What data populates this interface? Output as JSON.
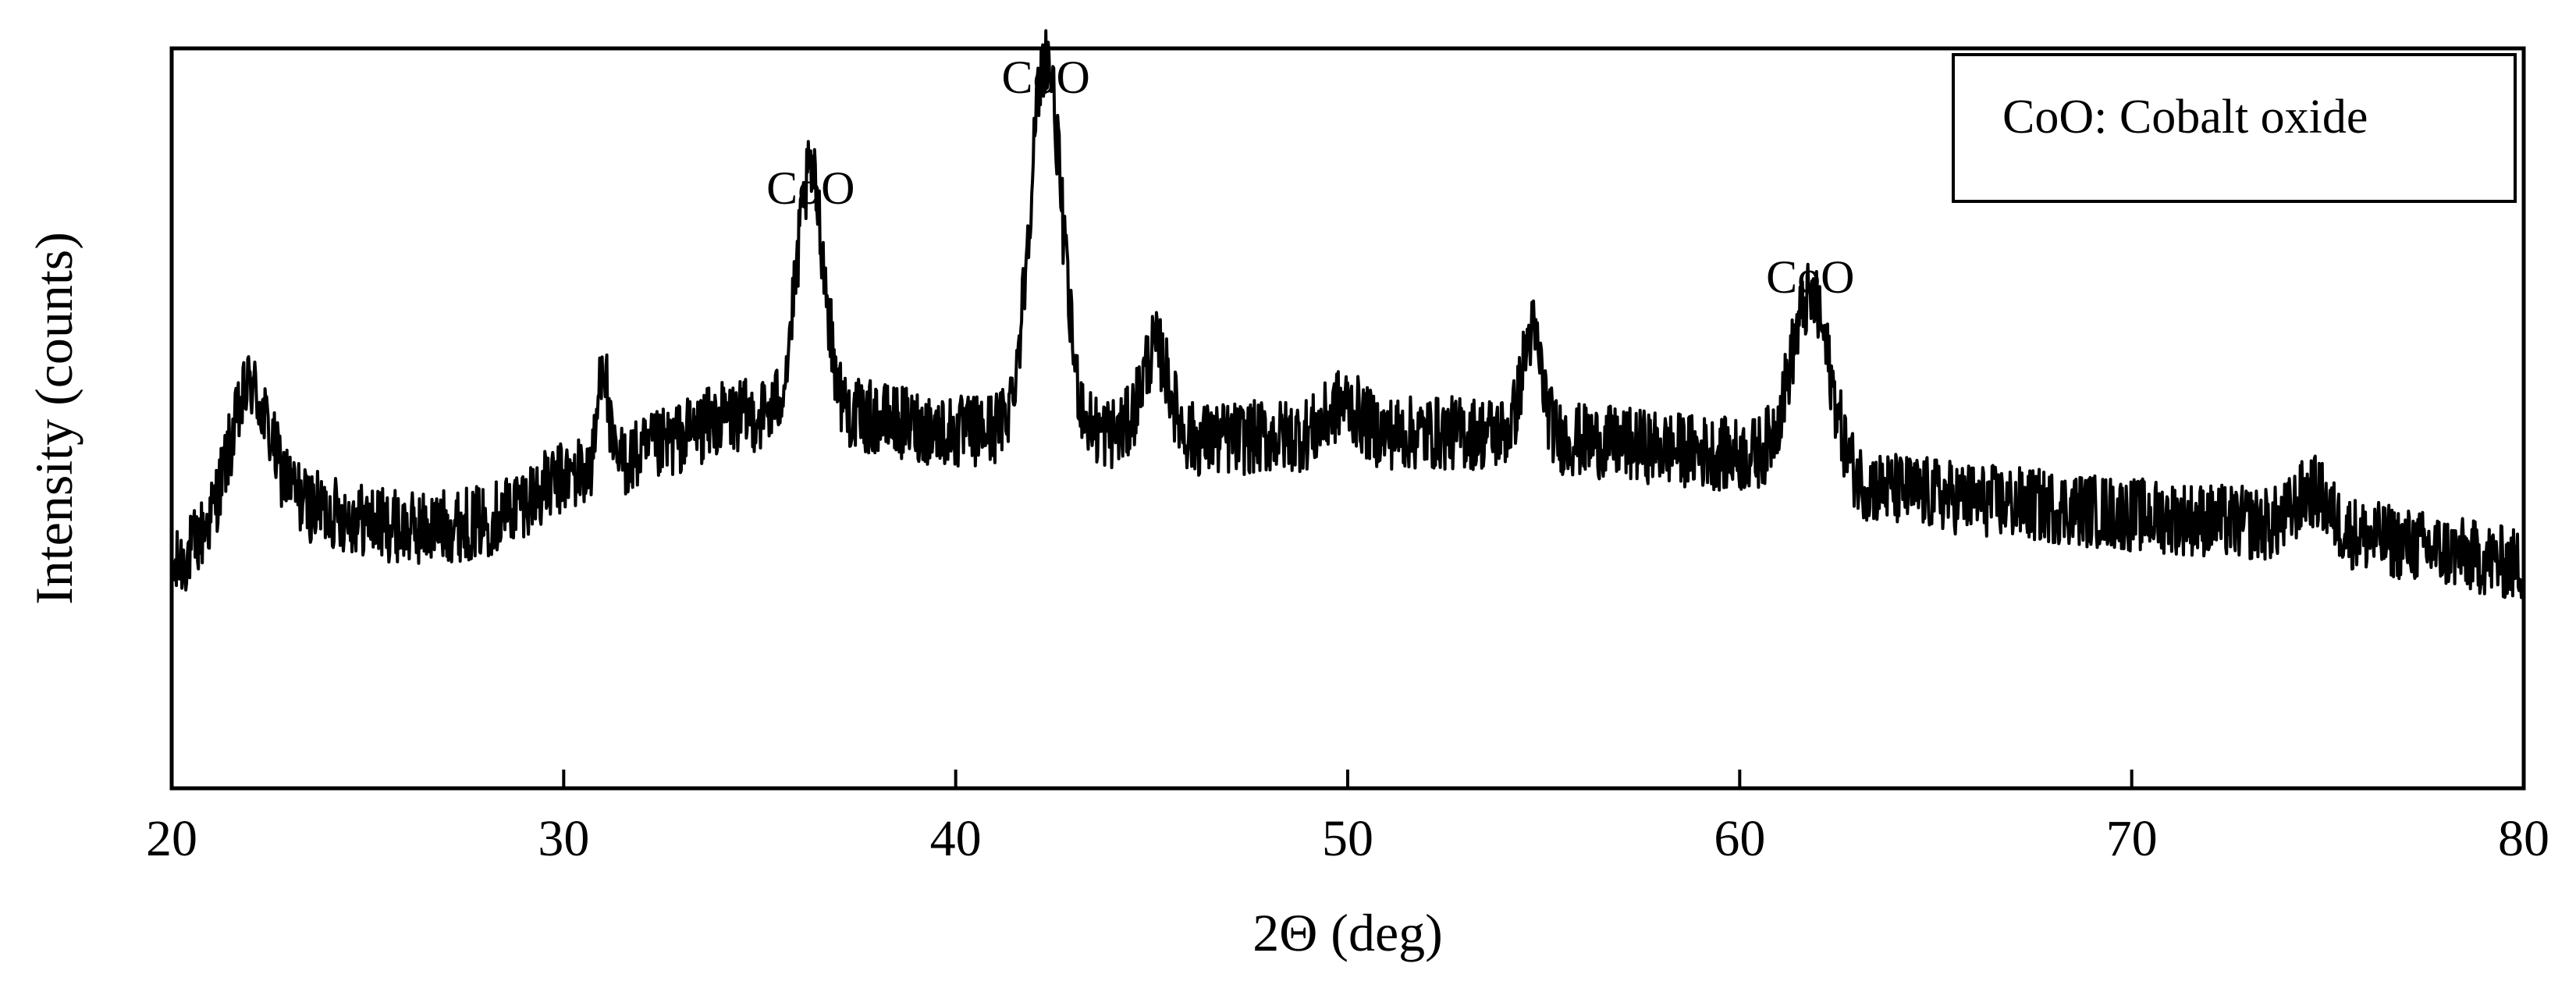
{
  "chart_data": {
    "type": "line",
    "title": "",
    "xlabel": "2Θ (deg)",
    "ylabel": "Intensity (counts)",
    "xlim": [
      20,
      80
    ],
    "xticks": [
      20,
      30,
      40,
      50,
      60,
      70,
      80
    ],
    "y_tick_labels_shown": false,
    "ylim": [
      0,
      100
    ],
    "grid": false,
    "legend": {
      "placement": "top-right",
      "text": "CoO: Cobalt oxide"
    },
    "series": [
      {
        "color": "#000000",
        "background": 30,
        "noise_amplitude": 5,
        "baseline": [
          [
            20,
            29
          ],
          [
            21,
            35
          ],
          [
            22,
            48
          ],
          [
            22.8,
            40
          ],
          [
            23.5,
            38
          ],
          [
            26,
            35
          ],
          [
            28,
            36
          ],
          [
            30,
            42
          ],
          [
            32,
            45
          ],
          [
            34,
            50
          ],
          [
            36,
            51
          ],
          [
            38,
            50
          ],
          [
            40,
            48
          ],
          [
            42,
            49
          ],
          [
            44,
            48
          ],
          [
            46,
            47
          ],
          [
            50,
            48
          ],
          [
            54,
            48
          ],
          [
            58,
            46
          ],
          [
            60,
            45
          ],
          [
            62,
            44
          ],
          [
            63,
            41
          ],
          [
            66,
            39
          ],
          [
            70,
            37
          ],
          [
            75,
            35
          ],
          [
            78,
            32
          ],
          [
            80,
            30
          ]
        ],
        "peaks": [
          {
            "x": 22.0,
            "height": 7,
            "width": 0.6
          },
          {
            "x": 31.0,
            "height": 15,
            "width": 0.12
          },
          {
            "x": 36.3,
            "height": 32,
            "width": 0.35
          },
          {
            "x": 42.3,
            "height": 50,
            "width": 0.4
          },
          {
            "x": 45.1,
            "height": 12,
            "width": 0.35
          },
          {
            "x": 49.9,
            "height": 4,
            "width": 0.4
          },
          {
            "x": 54.7,
            "height": 14,
            "width": 0.25
          },
          {
            "x": 61.8,
            "height": 22,
            "width": 0.5
          },
          {
            "x": 74.6,
            "height": 5,
            "width": 0.4
          }
        ]
      }
    ],
    "annotations": [
      {
        "text": "CoO",
        "x": 36.3,
        "y": 79
      },
      {
        "text": "CoO",
        "x": 42.3,
        "y": 94
      },
      {
        "text": "CoO",
        "x": 61.8,
        "y": 67
      }
    ]
  }
}
